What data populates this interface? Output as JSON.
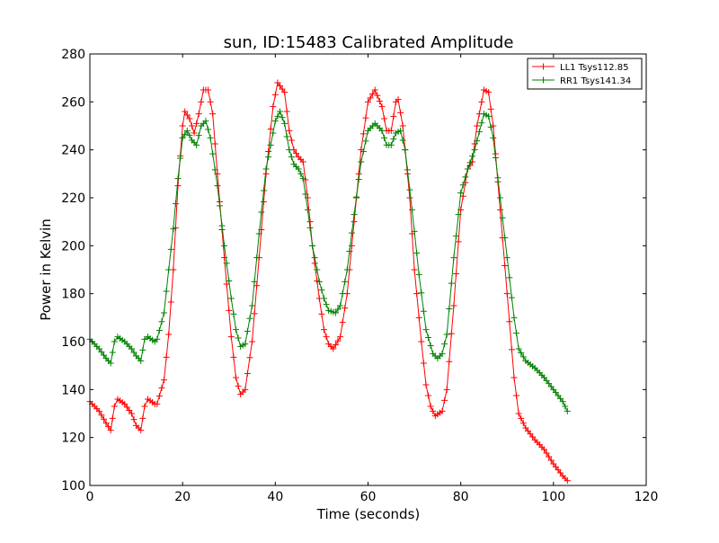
{
  "chart_data": {
    "type": "line",
    "title": "sun, ID:15483 Calibrated Amplitude",
    "xlabel": "Time (seconds)",
    "ylabel": "Power in Kelvin",
    "xlim": [
      0,
      120
    ],
    "ylim": [
      100,
      280
    ],
    "xticks": [
      0,
      20,
      40,
      60,
      80,
      100,
      120
    ],
    "yticks": [
      100,
      120,
      140,
      160,
      180,
      200,
      220,
      240,
      260,
      280
    ],
    "grid": false,
    "legend_position": "top-right",
    "marker": "plus",
    "series": [
      {
        "name": "LL1 Tsys112.85",
        "color": "#ff0000",
        "points": [
          [
            0,
            135
          ],
          [
            2,
            131
          ],
          [
            3.5,
            126
          ],
          [
            4.5,
            123
          ],
          [
            5.3,
            133
          ],
          [
            6,
            136
          ],
          [
            7.5,
            134
          ],
          [
            9,
            130
          ],
          [
            10,
            125
          ],
          [
            11,
            123
          ],
          [
            11.8,
            133
          ],
          [
            12.5,
            136
          ],
          [
            14,
            134
          ],
          [
            14.5,
            134
          ],
          [
            16,
            144
          ],
          [
            17,
            163
          ],
          [
            18,
            190
          ],
          [
            19,
            225
          ],
          [
            20,
            250
          ],
          [
            20.5,
            256
          ],
          [
            21.5,
            253
          ],
          [
            22.5,
            247
          ],
          [
            23.5,
            255
          ],
          [
            24.5,
            265
          ],
          [
            25.5,
            265
          ],
          [
            26.5,
            255
          ],
          [
            27.5,
            230
          ],
          [
            29,
            195
          ],
          [
            30.5,
            162
          ],
          [
            31.5,
            145
          ],
          [
            32.5,
            138
          ],
          [
            33.5,
            140
          ],
          [
            35,
            160
          ],
          [
            36.5,
            195
          ],
          [
            38,
            230
          ],
          [
            39.5,
            258
          ],
          [
            40.5,
            268
          ],
          [
            42,
            264
          ],
          [
            43,
            248
          ],
          [
            44,
            240
          ],
          [
            45,
            237
          ],
          [
            46,
            235
          ],
          [
            47,
            220
          ],
          [
            48,
            200
          ],
          [
            49.5,
            178
          ],
          [
            50.5,
            165
          ],
          [
            51.5,
            159
          ],
          [
            52.5,
            157
          ],
          [
            54,
            162
          ],
          [
            55.5,
            180
          ],
          [
            57,
            210
          ],
          [
            58.5,
            240
          ],
          [
            60,
            260
          ],
          [
            61.5,
            265
          ],
          [
            63,
            258
          ],
          [
            64,
            248
          ],
          [
            65,
            248
          ],
          [
            66,
            260
          ],
          [
            66.5,
            261
          ],
          [
            67.5,
            250
          ],
          [
            69,
            220
          ],
          [
            70,
            190
          ],
          [
            71.5,
            160
          ],
          [
            72.5,
            142
          ],
          [
            73.5,
            133
          ],
          [
            74.5,
            129
          ],
          [
            76,
            131
          ],
          [
            77,
            140
          ],
          [
            78.5,
            175
          ],
          [
            80,
            215
          ],
          [
            81.5,
            232
          ],
          [
            82.5,
            235
          ],
          [
            83.5,
            250
          ],
          [
            85,
            265
          ],
          [
            86,
            264
          ],
          [
            87,
            250
          ],
          [
            88.5,
            215
          ],
          [
            90,
            180
          ],
          [
            91.5,
            145
          ],
          [
            92.5,
            130
          ],
          [
            94,
            124
          ],
          [
            96,
            119
          ],
          [
            98,
            115
          ],
          [
            100,
            109
          ],
          [
            102,
            104
          ],
          [
            103,
            102
          ]
        ]
      },
      {
        "name": "RR1 Tsys141.34",
        "color": "#008000",
        "points": [
          [
            0,
            161
          ],
          [
            2,
            157
          ],
          [
            3.5,
            153
          ],
          [
            4.5,
            151
          ],
          [
            5.3,
            160
          ],
          [
            6,
            162
          ],
          [
            7.5,
            160
          ],
          [
            9,
            157
          ],
          [
            10,
            154
          ],
          [
            11,
            152
          ],
          [
            11.8,
            161
          ],
          [
            12.5,
            162
          ],
          [
            14,
            160
          ],
          [
            14.5,
            161
          ],
          [
            16,
            172
          ],
          [
            17,
            190
          ],
          [
            18,
            207
          ],
          [
            19,
            228
          ],
          [
            20,
            245
          ],
          [
            21,
            248
          ],
          [
            22,
            244
          ],
          [
            23,
            242
          ],
          [
            24,
            250
          ],
          [
            25,
            252
          ],
          [
            26,
            245
          ],
          [
            27.5,
            225
          ],
          [
            29,
            200
          ],
          [
            30.5,
            178
          ],
          [
            31.5,
            165
          ],
          [
            32.5,
            158
          ],
          [
            33.5,
            159
          ],
          [
            35,
            175
          ],
          [
            36.5,
            205
          ],
          [
            38,
            232
          ],
          [
            40,
            252
          ],
          [
            41,
            256
          ],
          [
            42,
            251
          ],
          [
            43,
            240
          ],
          [
            44,
            234
          ],
          [
            45,
            232
          ],
          [
            46,
            228
          ],
          [
            47,
            215
          ],
          [
            48,
            200
          ],
          [
            49.5,
            185
          ],
          [
            50.5,
            178
          ],
          [
            51.5,
            173
          ],
          [
            53,
            172
          ],
          [
            54,
            175
          ],
          [
            55.5,
            190
          ],
          [
            57,
            213
          ],
          [
            58.5,
            235
          ],
          [
            60,
            248
          ],
          [
            61.5,
            251
          ],
          [
            63,
            248
          ],
          [
            64,
            242
          ],
          [
            65,
            242
          ],
          [
            66,
            247
          ],
          [
            67,
            248
          ],
          [
            68,
            240
          ],
          [
            69.5,
            215
          ],
          [
            71,
            188
          ],
          [
            72.5,
            165
          ],
          [
            74,
            155
          ],
          [
            75,
            153
          ],
          [
            76,
            155
          ],
          [
            77,
            163
          ],
          [
            78.5,
            195
          ],
          [
            80,
            222
          ],
          [
            81.5,
            232
          ],
          [
            83,
            240
          ],
          [
            85,
            255
          ],
          [
            86,
            254
          ],
          [
            87,
            245
          ],
          [
            88.5,
            220
          ],
          [
            90,
            195
          ],
          [
            91.5,
            170
          ],
          [
            92.5,
            157
          ],
          [
            94,
            152
          ],
          [
            96,
            149
          ],
          [
            98,
            145
          ],
          [
            100,
            140
          ],
          [
            102,
            135
          ],
          [
            103,
            131
          ]
        ]
      }
    ]
  }
}
